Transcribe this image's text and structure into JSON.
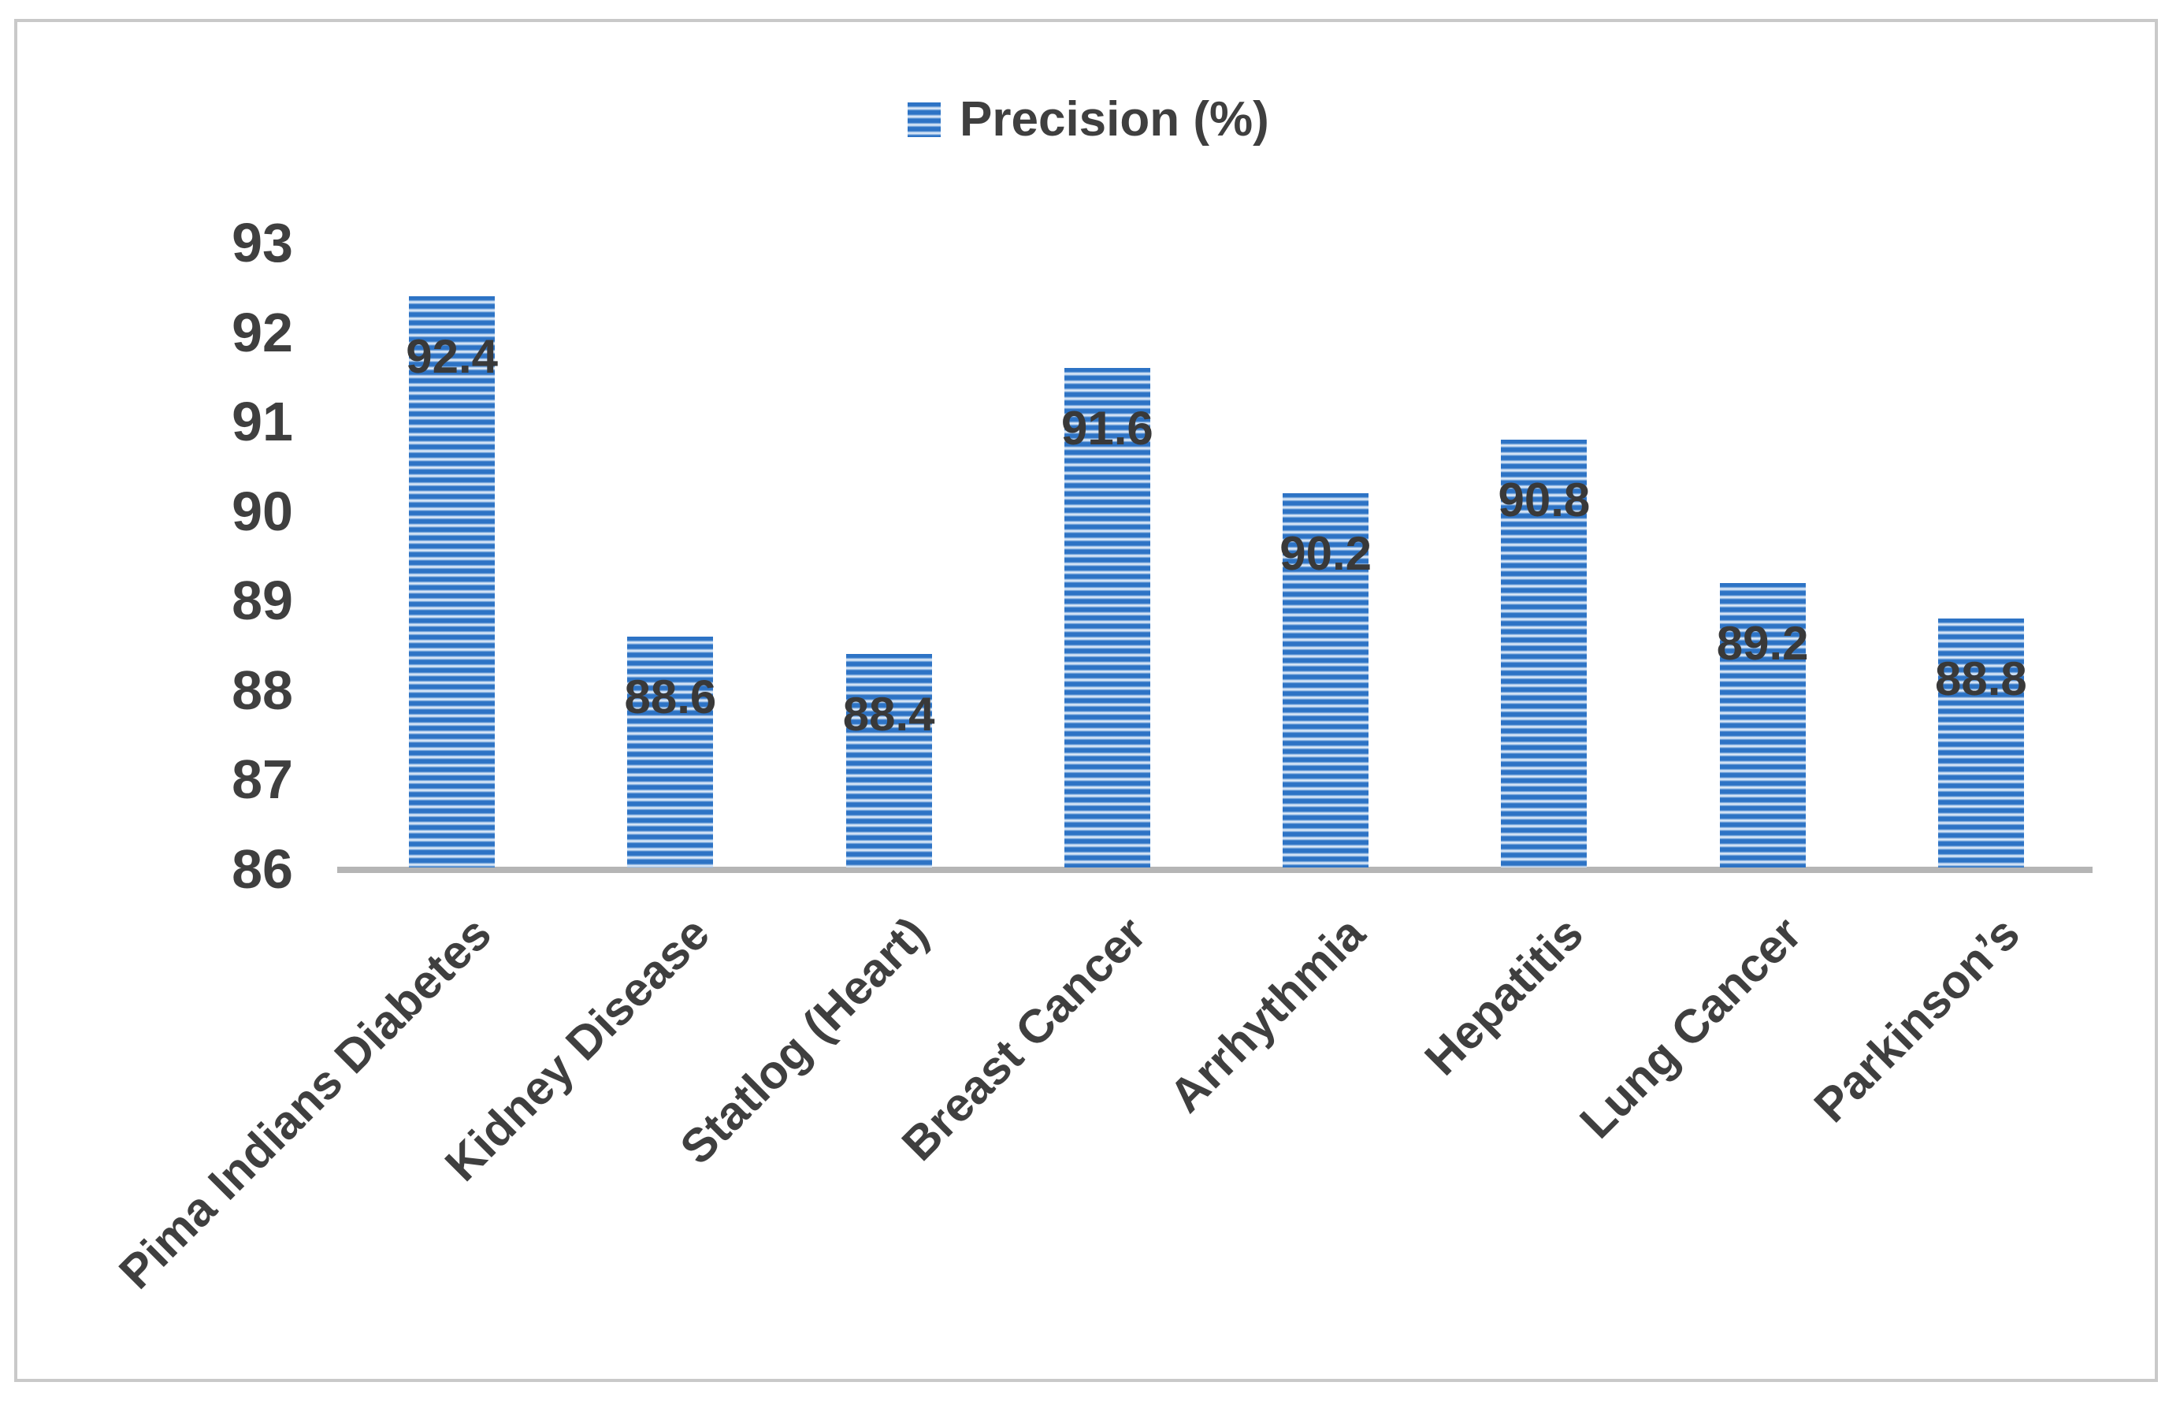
{
  "chart_data": {
    "type": "bar",
    "title": "",
    "legend": "Precision (%)",
    "legend_position": "top-center",
    "categories": [
      "Pima Indians Diabetes",
      "Kidney Disease",
      "Statlog (Heart)",
      "Breast Cancer",
      "Arrhythmia",
      "Hepatitis",
      "Lung Cancer",
      "Parkinson’s"
    ],
    "series": [
      {
        "name": "Precision (%)",
        "values": [
          92.4,
          88.6,
          88.4,
          91.6,
          90.2,
          90.8,
          89.2,
          88.8
        ]
      }
    ],
    "data_labels": [
      "92.4",
      "88.6",
      "88.4",
      "91.6",
      "90.2",
      "90.8",
      "89.2",
      "88.8"
    ],
    "ylim": [
      86,
      93
    ],
    "yticks": [
      86,
      87,
      88,
      89,
      90,
      91,
      92,
      93
    ],
    "grid": false,
    "bar_fill_style": "horizontal-stripes",
    "bar_color": "#2d73c5",
    "bar_stripe_light_color": "#ecf3fc",
    "text_color": "#3f3f3f",
    "axis_color": "#b5b5b5",
    "frame_color": "#c9c9c9"
  }
}
